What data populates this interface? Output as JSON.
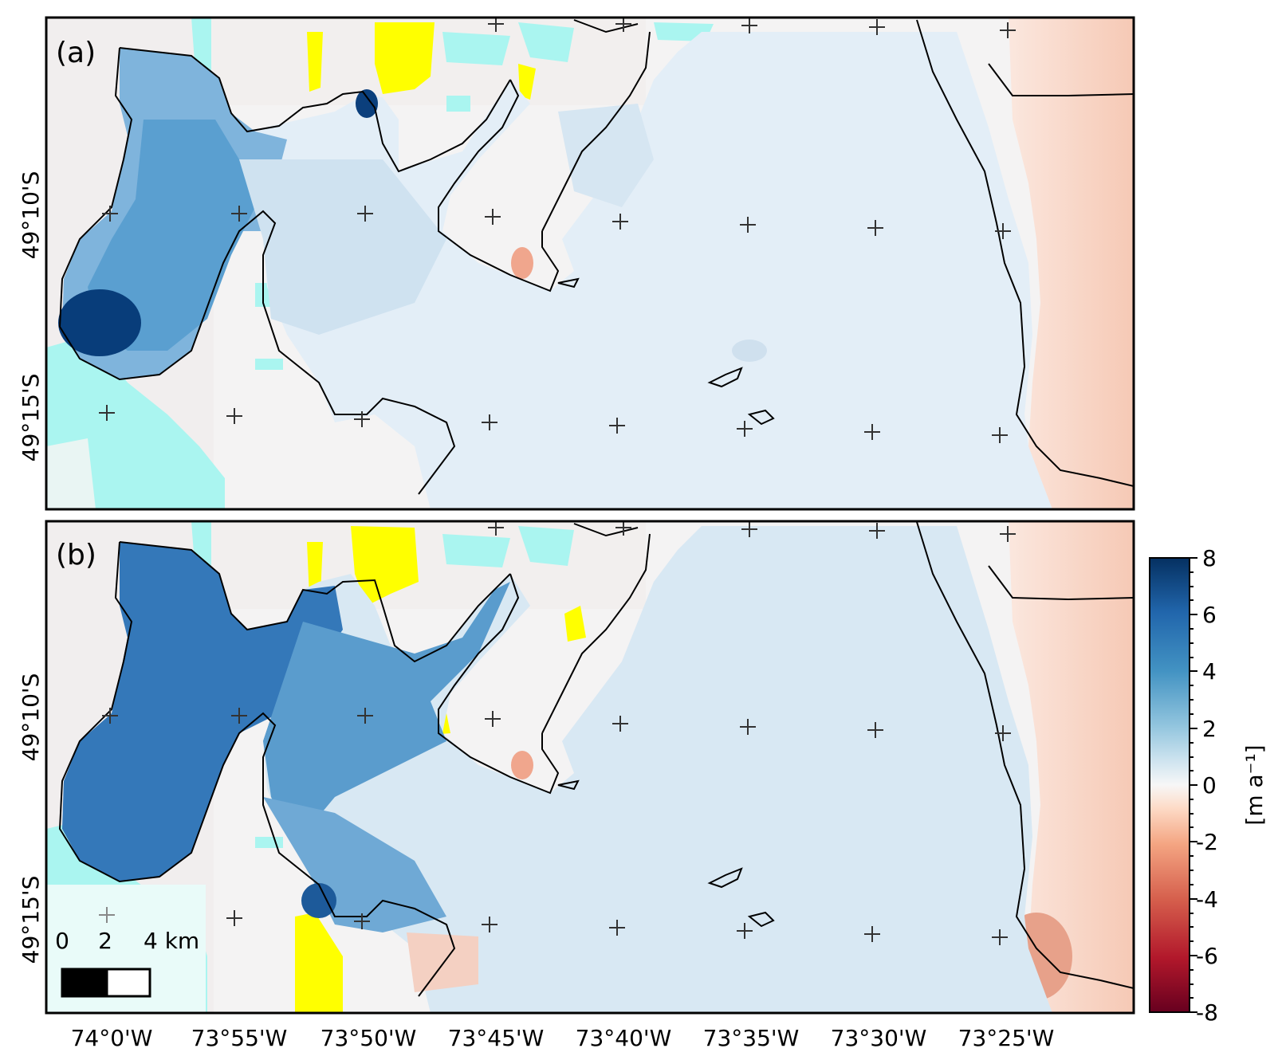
{
  "panels": [
    {
      "id": "a",
      "label": "(a)",
      "lat_labels": [
        "49°10'S",
        "49°15'S"
      ]
    },
    {
      "id": "b",
      "label": "(b)",
      "lat_labels": [
        "49°10'S",
        "49°15'S"
      ]
    }
  ],
  "lon_labels": [
    "74°0'W",
    "73°55'W",
    "73°50'W",
    "73°45'W",
    "73°40'W",
    "73°35'W",
    "73°30'W",
    "73°25'W"
  ],
  "scalebar": {
    "labels": [
      "0",
      "2",
      "4 km"
    ]
  },
  "colorbar": {
    "ticks": [
      "8",
      "6",
      "4",
      "2",
      "0",
      "-2",
      "-4",
      "-6",
      "-8"
    ],
    "unit": "[m a⁻¹]",
    "range": [
      -8,
      8
    ],
    "colors": [
      "#67001f",
      "#b2182b",
      "#d6604d",
      "#f4a582",
      "#fddbc7",
      "#f7f7f7",
      "#d1e5f0",
      "#92c5de",
      "#4393c3",
      "#2166ac",
      "#053061"
    ]
  },
  "colors": {
    "nodata_yellow": "#ffff00",
    "water_cyan": "#aaf5f0",
    "frame": "#000000",
    "grid_cross": "#333333"
  }
}
